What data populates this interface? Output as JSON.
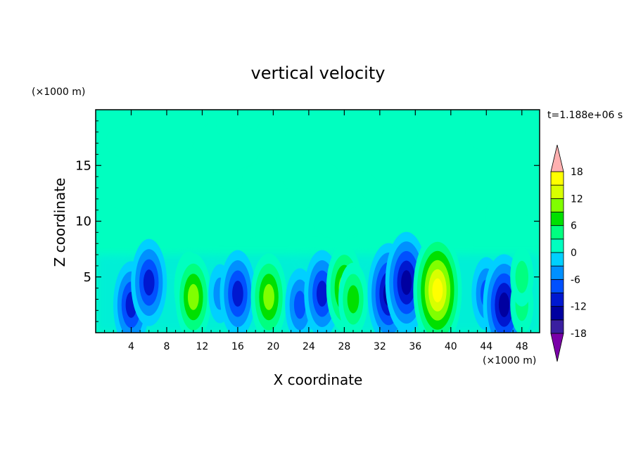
{
  "chart_data": {
    "type": "heatmap",
    "title": "vertical velocity",
    "xlabel": "X coordinate",
    "ylabel": "Z coordinate",
    "x_unit": "(×1000 m)",
    "y_unit": "(×1000 m)",
    "time_label": "t=1.188e+06 s",
    "xlim": [
      0,
      50
    ],
    "ylim": [
      0,
      20
    ],
    "x_ticks": [
      4,
      8,
      12,
      16,
      20,
      24,
      28,
      32,
      36,
      40,
      44,
      48
    ],
    "y_ticks": [
      5,
      10,
      15
    ],
    "colorbar": {
      "min": -21,
      "max": 21,
      "step": 3,
      "tick_labels": [
        "18",
        "12",
        "6",
        "0",
        "-6",
        "-12",
        "-18"
      ],
      "tick_values": [
        18,
        12,
        6,
        0,
        -6,
        -12,
        -18
      ],
      "extend": "both",
      "colors": [
        "#7a00a8",
        "#3a1fa0",
        "#0000a0",
        "#0018d0",
        "#0050ff",
        "#0090ff",
        "#00d0ff",
        "#00ffc0",
        "#00ff80",
        "#00e000",
        "#80ff00",
        "#d8ff00",
        "#ffff00",
        "#ffd000",
        "#ffa000",
        "#ff7000",
        "#ff3000",
        "#e00000",
        "#ffb0b0"
      ]
    },
    "cells": [
      {
        "x": 4,
        "z": 2.5,
        "w": -11
      },
      {
        "x": 6,
        "z": 4.5,
        "w": -9
      },
      {
        "x": 10.5,
        "z": 4.0,
        "w": 8
      },
      {
        "x": 11,
        "z": 3.2,
        "w": 10
      },
      {
        "x": 14,
        "z": 3.5,
        "w": -5
      },
      {
        "x": 16,
        "z": 3.5,
        "w": -9
      },
      {
        "x": 19.5,
        "z": 3.2,
        "w": 9
      },
      {
        "x": 23,
        "z": 2.5,
        "w": -8
      },
      {
        "x": 25.5,
        "z": 3.5,
        "w": -9
      },
      {
        "x": 28,
        "z": 4.0,
        "w": 9
      },
      {
        "x": 29,
        "z": 3.0,
        "w": 6
      },
      {
        "x": 33,
        "z": 3.5,
        "w": -13
      },
      {
        "x": 35,
        "z": 4.5,
        "w": -12
      },
      {
        "x": 38.5,
        "z": 3.8,
        "w": 15
      },
      {
        "x": 44,
        "z": 3.5,
        "w": -8
      },
      {
        "x": 46,
        "z": 2.5,
        "w": -12
      },
      {
        "x": 48,
        "z": 2.5,
        "w": 5
      },
      {
        "x": 48,
        "z": 5.0,
        "w": 4
      }
    ]
  }
}
